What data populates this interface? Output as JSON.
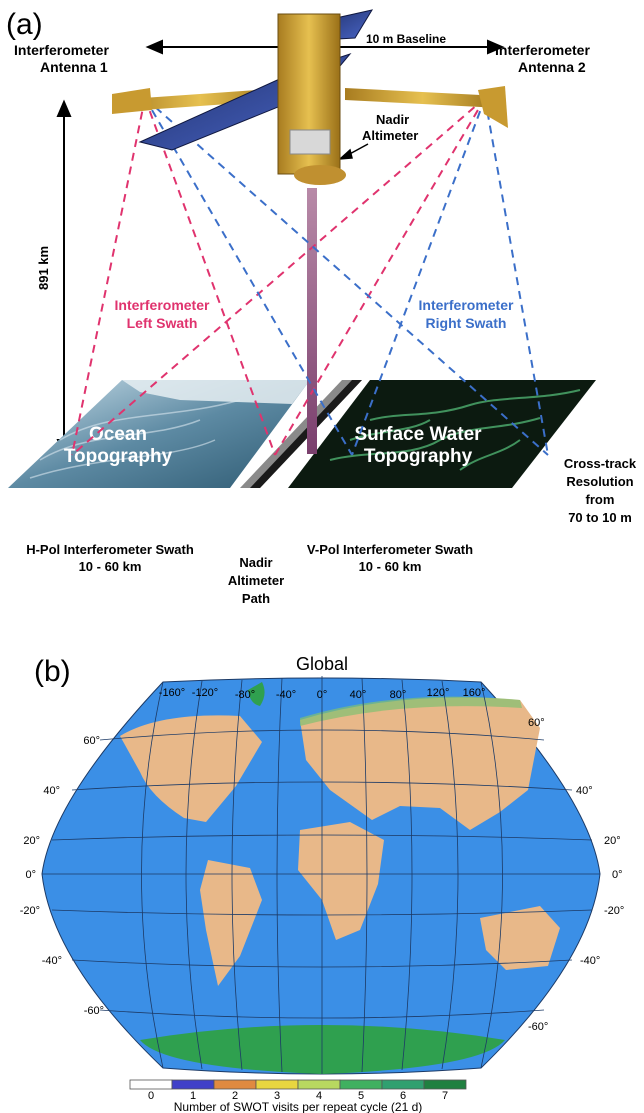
{
  "panel_a": {
    "label": "(a)",
    "antenna1_line1": "Interferometer",
    "antenna1_line2": "Antenna 1",
    "antenna2_line1": "Interferometer",
    "antenna2_line2": "Antenna 2",
    "baseline": "10 m Baseline",
    "nadir_alt_line1": "Nadir",
    "nadir_alt_line2": "Altimeter",
    "altitude": "891 km",
    "left_swath_line1": "Interferometer",
    "left_swath_line2": "Left Swath",
    "right_swath_line1": "Interferometer",
    "right_swath_line2": "Right Swath",
    "ocean_line1": "Ocean",
    "ocean_line2": "Topography",
    "surface_line1": "Surface Water",
    "surface_line2": "Topography",
    "cross_line1": "Cross-track",
    "cross_line2": "Resolution",
    "cross_line3": "from",
    "cross_line4": "70  to 10 m",
    "hpol_line1": "H-Pol Interferometer Swath",
    "hpol_line2": "10 - 60 km",
    "nadir_path_line1": "Nadir",
    "nadir_path_line2": "Altimeter",
    "nadir_path_line3": "Path",
    "vpol_line1": "V-Pol Interferometer Swath",
    "vpol_line2": "10 - 60 km",
    "colors": {
      "left_swath": "#e0336e",
      "right_swath": "#3b6fc9"
    }
  },
  "panel_b": {
    "label": "(b)",
    "title": "Global",
    "lon_labels": [
      "-160°",
      "-120°",
      "-80°",
      "-40°",
      "0°",
      "40°",
      "80°",
      "120°",
      "160°"
    ],
    "lat_labels": [
      "60°",
      "40°",
      "20°",
      "0°",
      "-20°",
      "-40°",
      "-60°"
    ],
    "colorbar_ticks": [
      "0",
      "1",
      "2",
      "3",
      "4",
      "5",
      "6",
      "7"
    ],
    "colorbar_label": "Number of SWOT visits per repeat cycle (21 d)",
    "colors": {
      "ocean": "#3b8fe6",
      "land": "#e8b889",
      "polar": "#2fa04f",
      "cb_0": "#ffffff",
      "cb_1": "#4040c8",
      "cb_2": "#e08a40",
      "cb_3": "#e8d640",
      "cb_4": "#b8d860",
      "cb_5": "#40b060",
      "cb_6": "#30a070",
      "cb_7": "#208040"
    }
  }
}
